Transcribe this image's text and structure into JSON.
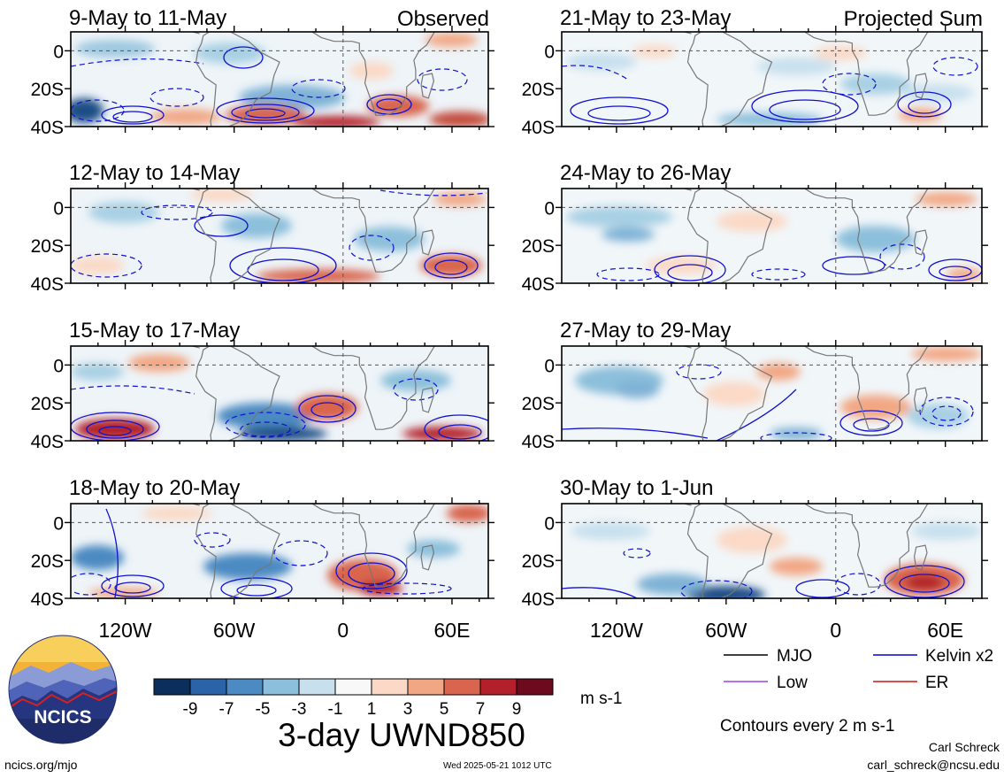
{
  "header": {
    "observed_label": "Observed",
    "projected_label": "Projected Sum"
  },
  "panels": {
    "left": [
      {
        "title": "9-May to 11-May"
      },
      {
        "title": "12-May to 14-May"
      },
      {
        "title": "15-May to 17-May"
      },
      {
        "title": "18-May to 20-May"
      }
    ],
    "right": [
      {
        "title": "21-May to 23-May"
      },
      {
        "title": "24-May to 26-May"
      },
      {
        "title": "27-May to 29-May"
      },
      {
        "title": "30-May to 1-Jun"
      }
    ]
  },
  "axes": {
    "lat_labels": [
      "0",
      "20S",
      "40S"
    ],
    "lon_labels": [
      "120W",
      "60W",
      "0",
      "60E"
    ]
  },
  "legend": {
    "items": [
      {
        "label": "MJO",
        "color": "#000000"
      },
      {
        "label": "Kelvin x2",
        "color": "#0000dd"
      },
      {
        "label": "Low",
        "color": "#a040e0"
      },
      {
        "label": "ER",
        "color": "#d01010"
      }
    ],
    "contour_note": "Contours every 2 m s-1"
  },
  "colorbar": {
    "tick_labels": [
      "-9",
      "-7",
      "-5",
      "-3",
      "-1",
      "1",
      "3",
      "5",
      "7",
      "9"
    ],
    "colors": [
      "#0b2e5c",
      "#2a63a8",
      "#4b8ac2",
      "#8cbfdb",
      "#c8e0ee",
      "#f8f8f8",
      "#fbd9c6",
      "#f2a784",
      "#d9654e",
      "#b3202b",
      "#6d0a1e"
    ],
    "unit": "m s-1"
  },
  "main_title": "3-day UWND850",
  "logo": {
    "text": "NCICS"
  },
  "footer": {
    "url": "ncics.org/mjo",
    "timestamp": "Wed 2025-05-21 1012 UTC",
    "author": "Carl Schreck",
    "email": "carl_schreck@ncsu.edu"
  }
}
